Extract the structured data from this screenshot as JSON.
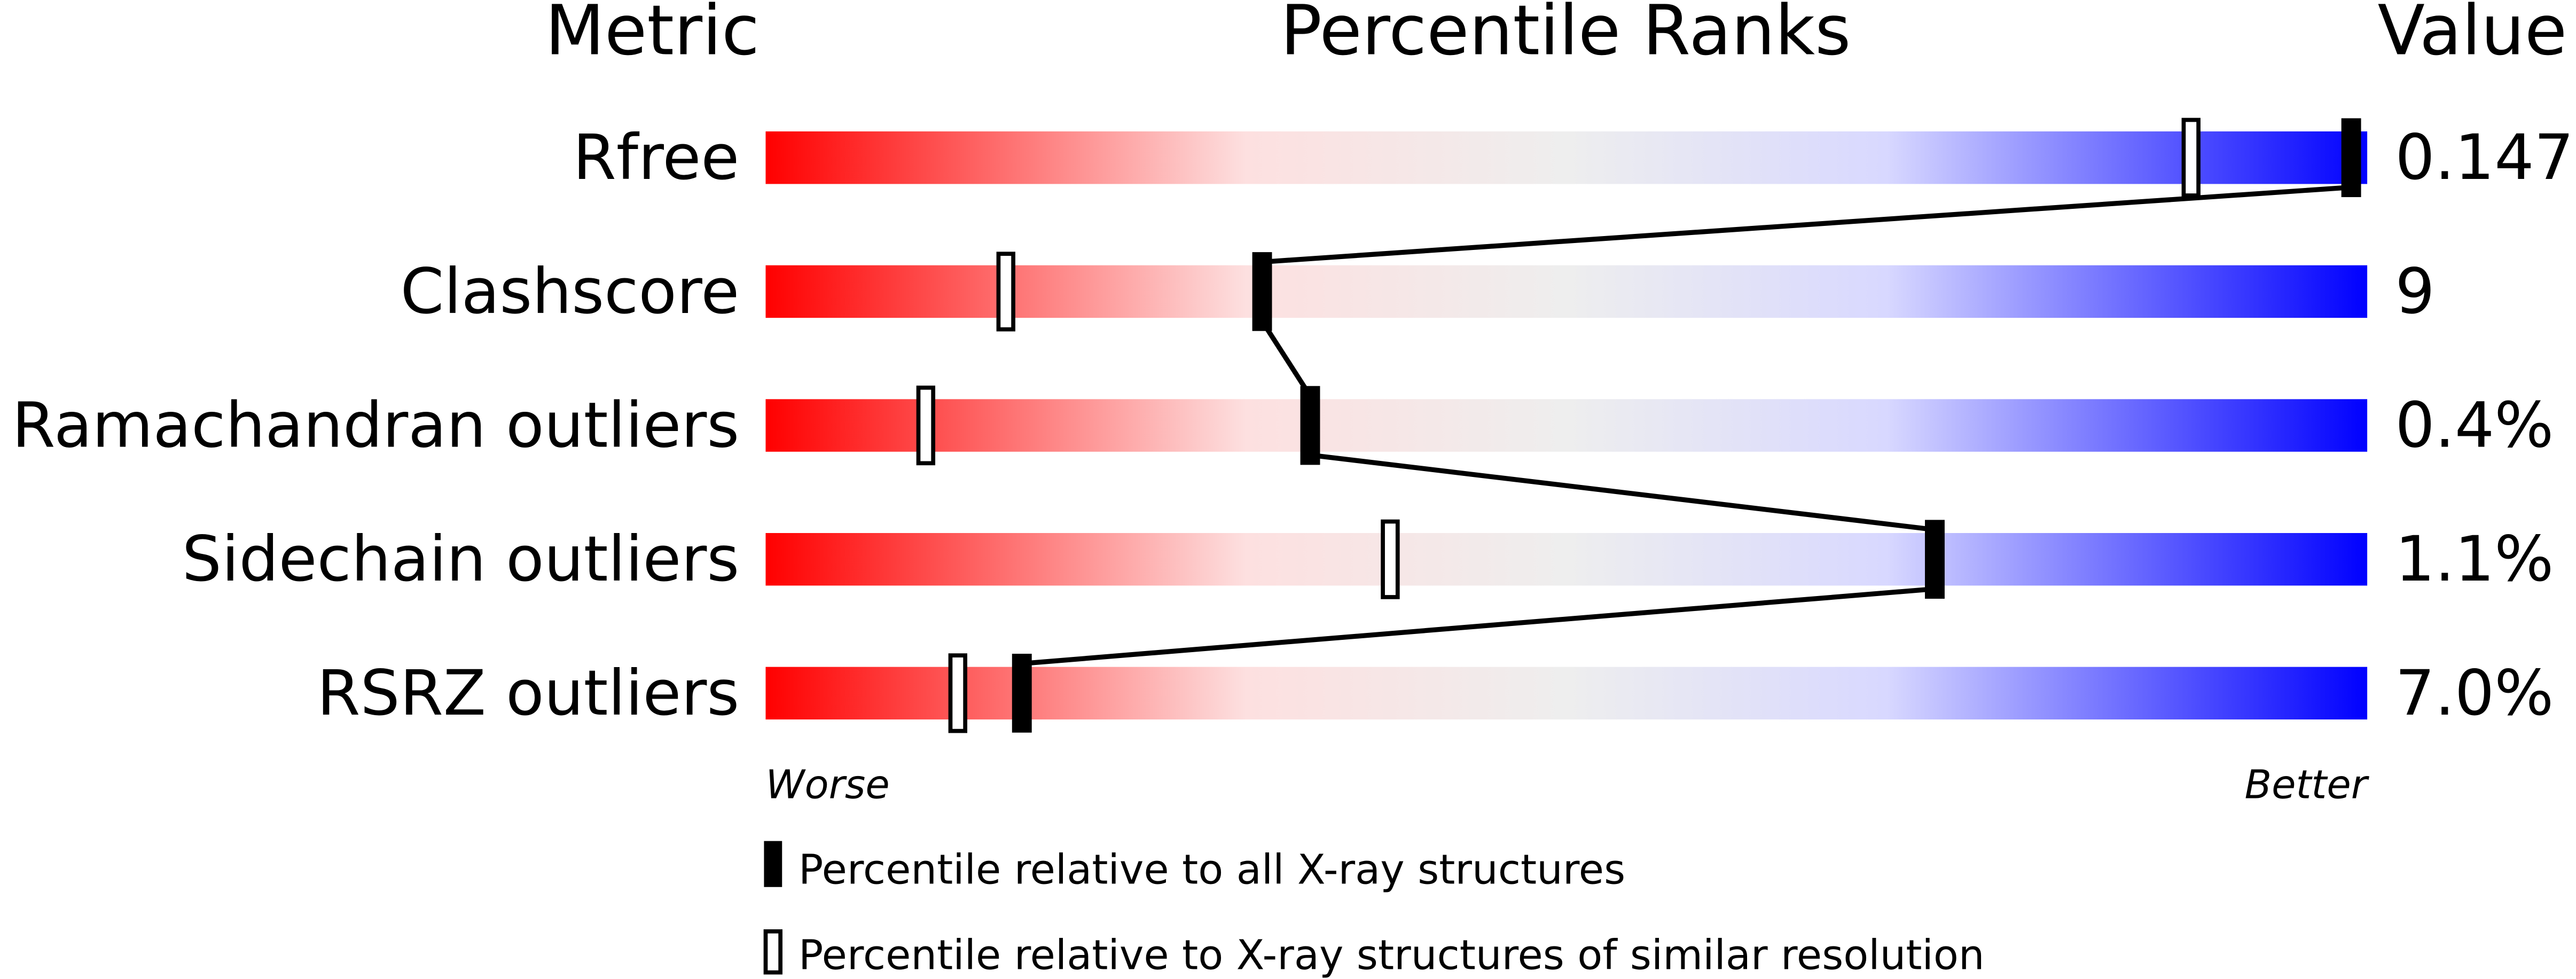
{
  "chart_data": {
    "type": "percentile-slider",
    "headers": {
      "metric": "Metric",
      "percentile": "Percentile Ranks",
      "value": "Value"
    },
    "xlim": [
      0,
      100
    ],
    "axis_labels": {
      "left": "Worse",
      "right": "Better"
    },
    "metrics": [
      {
        "name": "Rfree",
        "value": "0.147",
        "percentile_all": 99,
        "percentile_similar": 89
      },
      {
        "name": "Clashscore",
        "value": "9",
        "percentile_all": 31,
        "percentile_similar": 15
      },
      {
        "name": "Ramachandran outliers",
        "value": "0.4%",
        "percentile_all": 34,
        "percentile_similar": 10
      },
      {
        "name": "Sidechain outliers",
        "value": "1.1%",
        "percentile_all": 73,
        "percentile_similar": 39
      },
      {
        "name": "RSRZ outliers",
        "value": "7.0%",
        "percentile_all": 16,
        "percentile_similar": 12
      }
    ],
    "legend": [
      {
        "marker": "filled",
        "label": "Percentile relative to all X-ray structures"
      },
      {
        "marker": "open",
        "label": "Percentile relative to X-ray structures of similar resolution"
      }
    ],
    "colors": {
      "worse": "#ff0000",
      "middle": "#eeeeee",
      "better": "#0000ff",
      "marker": "#000000"
    }
  }
}
